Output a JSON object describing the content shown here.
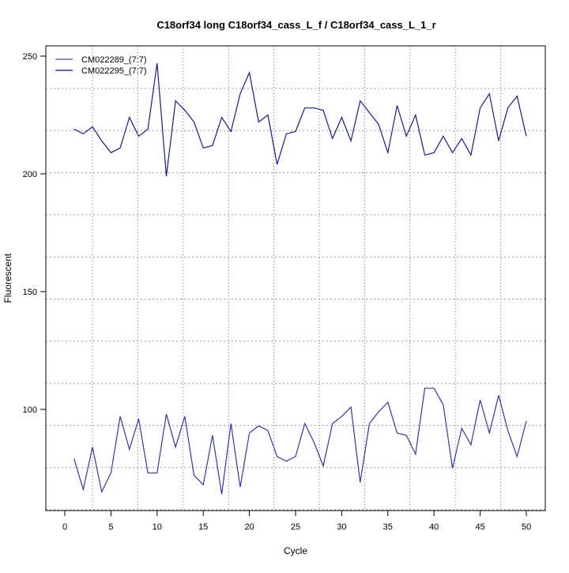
{
  "chart_data": {
    "type": "line",
    "title": "C18orf34 long C18orf34_cass_L_f / C18orf34_cass_L_1_r",
    "xlabel": "Cycle",
    "ylabel": "Fluorescent",
    "xlim": [
      -2,
      52
    ],
    "ylim": [
      62,
      255
    ],
    "x_ticks": [
      0,
      5,
      10,
      15,
      20,
      25,
      30,
      35,
      40,
      45,
      50
    ],
    "y_ticks": [
      100,
      150,
      200,
      250
    ],
    "grid": true,
    "legend_position": "top-left",
    "x": [
      1,
      2,
      3,
      4,
      5,
      6,
      7,
      8,
      9,
      10,
      11,
      12,
      13,
      14,
      15,
      16,
      17,
      18,
      19,
      20,
      21,
      22,
      23,
      24,
      25,
      26,
      27,
      28,
      29,
      30,
      31,
      32,
      33,
      34,
      35,
      36,
      37,
      38,
      39,
      40,
      41,
      42,
      43,
      44,
      45,
      46,
      47,
      48,
      49,
      50
    ],
    "series": [
      {
        "name": "CM022289_(7:7)",
        "color": "#1a1a8c",
        "values": [
          219,
          217,
          220,
          214,
          209,
          211,
          224,
          216,
          219,
          247,
          199,
          231,
          227,
          222,
          211,
          212,
          224,
          218,
          234,
          243,
          222,
          225,
          204,
          217,
          218,
          228,
          228,
          227,
          215,
          224,
          214,
          231,
          226,
          221,
          209,
          229,
          216,
          225,
          208,
          209,
          216,
          209,
          215,
          208,
          228,
          234,
          214,
          228,
          233,
          216
        ]
      },
      {
        "name": "CM022295_(7:7)",
        "color": "#3535a8",
        "values": [
          79,
          66,
          84,
          65,
          73,
          97,
          83,
          96,
          73,
          73,
          98,
          84,
          97,
          72,
          68,
          89,
          64,
          94,
          67,
          90,
          93,
          91,
          80,
          78,
          80,
          94,
          86,
          76,
          94,
          97,
          101,
          69,
          94,
          99,
          103,
          90,
          89,
          81,
          109,
          109,
          102,
          75,
          92,
          85,
          104,
          90,
          106,
          91,
          80,
          95
        ]
      }
    ]
  }
}
